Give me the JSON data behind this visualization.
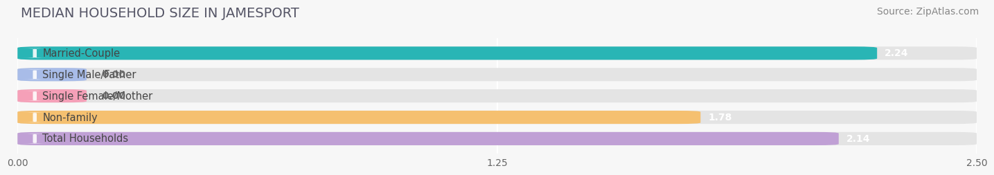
{
  "title": "MEDIAN HOUSEHOLD SIZE IN JAMESPORT",
  "source": "Source: ZipAtlas.com",
  "categories": [
    "Married-Couple",
    "Single Male/Father",
    "Single Female/Mother",
    "Non-family",
    "Total Households"
  ],
  "values": [
    2.24,
    0.0,
    0.0,
    1.78,
    2.14
  ],
  "bar_colors": [
    "#29b5b5",
    "#a8bce8",
    "#f5a0b8",
    "#f5c070",
    "#c0a0d5"
  ],
  "value_colors": [
    "#ffffff",
    "#666666",
    "#666666",
    "#ffffff",
    "#ffffff"
  ],
  "xlim": [
    0,
    2.5
  ],
  "xticks": [
    0.0,
    1.25,
    2.5
  ],
  "xtick_labels": [
    "0.00",
    "1.25",
    "2.50"
  ],
  "background_color": "#f7f7f7",
  "bar_bg_color": "#e4e4e4",
  "title_fontsize": 14,
  "source_fontsize": 10,
  "label_fontsize": 10.5,
  "value_fontsize": 10,
  "tick_fontsize": 10,
  "bar_height": 0.62,
  "zero_bar_width": 0.18
}
